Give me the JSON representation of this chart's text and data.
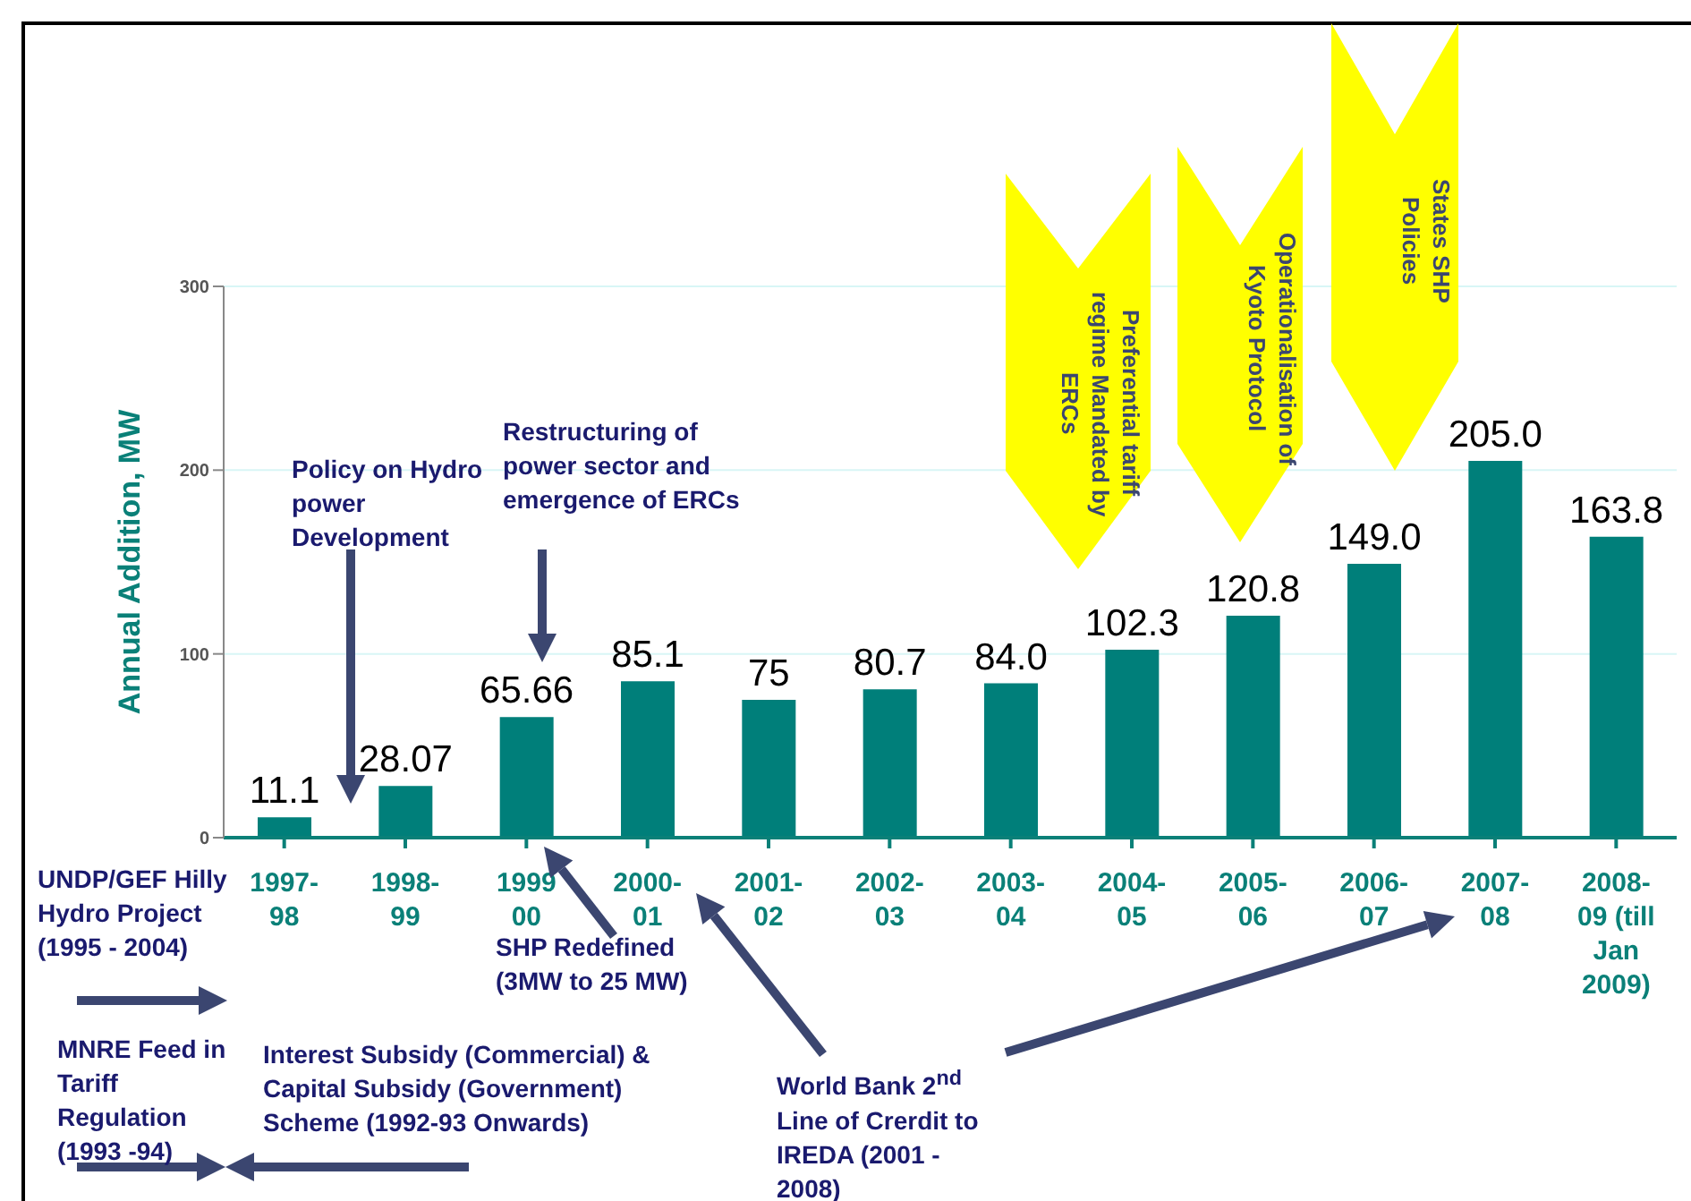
{
  "chart_data": {
    "type": "bar",
    "ylabel": "Annual Addition, MW",
    "categories": [
      "1997-\n98",
      "1998-\n99",
      "1999\n00",
      "2000-\n01",
      "2001-\n02",
      "2002-\n03",
      "2003-\n04",
      "2004-\n05",
      "2005-\n06",
      "2006-\n07",
      "2007-\n08",
      "2008-\n09 (till\nJan\n2009)"
    ],
    "values": [
      11.1,
      28.07,
      65.66,
      85.1,
      75,
      80.7,
      84.0,
      102.3,
      120.8,
      149.0,
      205.0,
      163.8
    ],
    "value_labels": [
      "11.1",
      "28.07",
      "65.66",
      "85.1",
      "75",
      "80.7",
      "84.0",
      "102.3",
      "120.8",
      "149.0",
      "205.0",
      "163.8"
    ],
    "color": "#007f7a",
    "ylim": [
      0,
      300
    ],
    "yticks": [
      0,
      100,
      200,
      300
    ],
    "grid": "y",
    "annotations": [
      "Policy on Hydro power Development",
      "Restructuring of power sector and emergence of ERCs",
      "SHP Redefined (3MW to 25 MW)",
      "UNDP/GEF Hilly Hydro Project (1995 - 2004)",
      "MNRE Feed in Tariff Regulation (1993 -94)",
      "Interest Subsidy (Commercial) & Capital Subsidy (Government) Scheme (1992-93 Onwards)",
      "World Bank 2$^{nd}$ Line of Crerdit to IREDA (2001 - 2008)",
      "Preferential tariff regime Mandated by ERCs",
      "Operationalisation of Kyoto Protocol",
      "States SHP Policies"
    ]
  }
}
